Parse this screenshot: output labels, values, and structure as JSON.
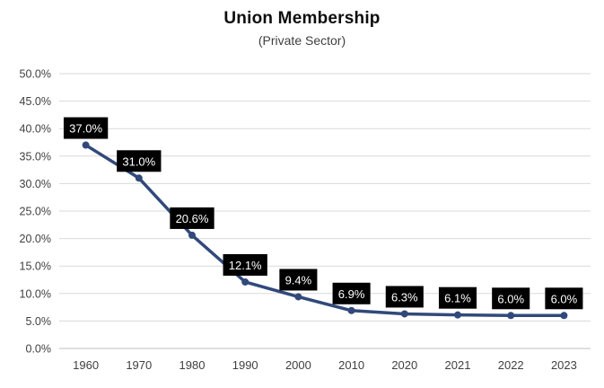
{
  "title": "Union Membership",
  "subtitle": "(Private Sector)",
  "chart_data": {
    "type": "line",
    "title": "Union Membership",
    "subtitle": "(Private Sector)",
    "categories": [
      "1960",
      "1970",
      "1980",
      "1990",
      "2000",
      "2010",
      "2020",
      "2021",
      "2022",
      "2023"
    ],
    "values": [
      37.0,
      31.0,
      20.6,
      12.1,
      9.4,
      6.9,
      6.3,
      6.1,
      6.0,
      6.0
    ],
    "data_labels": [
      "37.0%",
      "31.0%",
      "20.6%",
      "12.1%",
      "9.4%",
      "6.9%",
      "6.3%",
      "6.1%",
      "6.0%",
      "6.0%"
    ],
    "xlabel": "",
    "ylabel": "",
    "ylim": [
      0,
      50
    ],
    "y_tick_values": [
      0,
      5,
      10,
      15,
      20,
      25,
      30,
      35,
      40,
      45,
      50
    ],
    "y_tick_labels": [
      "0.0%",
      "5.0%",
      "10.0%",
      "15.0%",
      "20.0%",
      "25.0%",
      "30.0%",
      "35.0%",
      "40.0%",
      "45.0%",
      "50.0%"
    ],
    "grid": true,
    "legend": false,
    "style": {
      "line_color": "#31497A",
      "marker_color": "#31497A",
      "label_bg": "#000000",
      "label_text": "#FFFFFF",
      "grid_color": "#D9D9D9",
      "axis_color": "#BFBFBF",
      "tick_text_color": "#404040"
    }
  }
}
